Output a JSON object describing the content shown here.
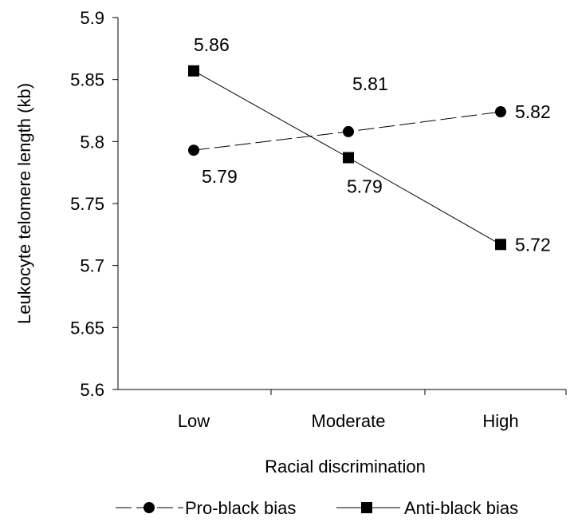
{
  "chart_data": {
    "type": "line",
    "title": "",
    "xlabel": "Racial discrimination",
    "ylabel": "Leukocyte telomere length (kb)",
    "categories": [
      "Low",
      "Moderate",
      "High"
    ],
    "ylim": [
      5.6,
      5.9
    ],
    "yticks": [
      "5.6",
      "5.65",
      "5.7",
      "5.75",
      "5.8",
      "5.85",
      "5.9"
    ],
    "grid": false,
    "legend_position": "bottom",
    "series": [
      {
        "name": "Pro-black bias",
        "marker": "circle",
        "line_style": "dashed",
        "values": [
          5.793,
          5.808,
          5.824
        ],
        "labels": [
          "5.79",
          "5.81",
          "5.82"
        ]
      },
      {
        "name": "Anti-black bias",
        "marker": "square",
        "line_style": "solid",
        "values": [
          5.857,
          5.787,
          5.717
        ],
        "labels": [
          "5.86",
          "5.79",
          "5.72"
        ]
      }
    ],
    "colors": {
      "line": "#000000",
      "axis": "#000000"
    }
  }
}
